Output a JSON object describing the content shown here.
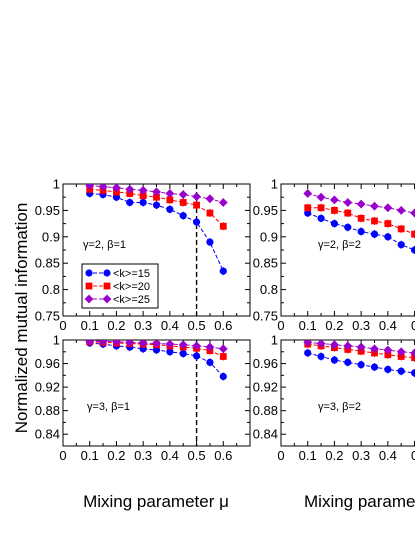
{
  "figure": {
    "ylabel": "Normalized mutual information",
    "xlabel_left": "Mixing parameter  μ",
    "xlabel_right": "Mixing parame"
  },
  "chart_data": [
    {
      "id": "top-left",
      "type": "line",
      "annotation": "γ=2,  β=1",
      "xlim": [
        0,
        0.7
      ],
      "ylim": [
        0.75,
        1
      ],
      "xticks": [
        "0",
        "0.1",
        "0.2",
        "0.3",
        "0.4",
        "0.5",
        "0.6"
      ],
      "yticks": [
        "0.75",
        "0.8",
        "0.85",
        "0.9",
        "0.95",
        "1"
      ],
      "ytick_values": [
        0.75,
        0.8,
        0.85,
        0.9,
        0.95,
        1.0
      ],
      "vline": 0.5,
      "legend": [
        "<k>=15",
        "<k>=20",
        "<k>=25"
      ],
      "series": [
        {
          "name": "<k>=15",
          "color": "#0000ff",
          "marker": "circle",
          "x": [
            0.1,
            0.15,
            0.2,
            0.25,
            0.3,
            0.35,
            0.4,
            0.45,
            0.5,
            0.55,
            0.6
          ],
          "y": [
            0.982,
            0.98,
            0.975,
            0.965,
            0.965,
            0.96,
            0.952,
            0.94,
            0.928,
            0.89,
            0.835
          ]
        },
        {
          "name": "<k>=20",
          "color": "#ff0000",
          "marker": "square",
          "x": [
            0.1,
            0.15,
            0.2,
            0.25,
            0.3,
            0.35,
            0.4,
            0.45,
            0.5,
            0.55,
            0.6
          ],
          "y": [
            0.99,
            0.988,
            0.985,
            0.982,
            0.978,
            0.975,
            0.97,
            0.965,
            0.96,
            0.945,
            0.92
          ]
        },
        {
          "name": "<k>=25",
          "color": "#9900cc",
          "marker": "diamond",
          "x": [
            0.1,
            0.15,
            0.2,
            0.25,
            0.3,
            0.35,
            0.4,
            0.45,
            0.5,
            0.55,
            0.6
          ],
          "y": [
            0.997,
            0.995,
            0.993,
            0.99,
            0.988,
            0.985,
            0.982,
            0.98,
            0.976,
            0.972,
            0.965
          ]
        }
      ]
    },
    {
      "id": "top-right",
      "type": "line",
      "annotation": "γ=2,  β=2",
      "xlim": [
        0,
        0.7
      ],
      "ylim": [
        0.75,
        1
      ],
      "xticks": [
        "0",
        "0.1",
        "0.2",
        "0.3",
        "0.4",
        "0"
      ],
      "yticks": [
        "0.75",
        "0.8",
        "0.85",
        "0.9",
        "0.95",
        "1"
      ],
      "ytick_values": [
        0.75,
        0.8,
        0.85,
        0.9,
        0.95,
        1.0
      ],
      "series": [
        {
          "name": "<k>=15",
          "color": "#0000ff",
          "marker": "circle",
          "x": [
            0.1,
            0.15,
            0.2,
            0.25,
            0.3,
            0.35,
            0.4,
            0.45,
            0.5
          ],
          "y": [
            0.945,
            0.935,
            0.925,
            0.918,
            0.91,
            0.905,
            0.9,
            0.885,
            0.875
          ]
        },
        {
          "name": "<k>=20",
          "color": "#ff0000",
          "marker": "square",
          "x": [
            0.1,
            0.15,
            0.2,
            0.25,
            0.3,
            0.35,
            0.4,
            0.45,
            0.5
          ],
          "y": [
            0.955,
            0.955,
            0.95,
            0.945,
            0.935,
            0.93,
            0.925,
            0.915,
            0.905
          ]
        },
        {
          "name": "<k>=25",
          "color": "#9900cc",
          "marker": "diamond",
          "x": [
            0.1,
            0.15,
            0.2,
            0.25,
            0.3,
            0.35,
            0.4,
            0.45,
            0.5
          ],
          "y": [
            0.982,
            0.975,
            0.97,
            0.965,
            0.962,
            0.958,
            0.955,
            0.95,
            0.945
          ]
        }
      ]
    },
    {
      "id": "bottom-left",
      "type": "line",
      "annotation": "γ=3,  β=1",
      "xlim": [
        0,
        0.7
      ],
      "ylim": [
        0.82,
        1
      ],
      "xticks": [
        "0",
        "0.1",
        "0.2",
        "0.3",
        "0.4",
        "0.5",
        "0.6"
      ],
      "yticks": [
        "0.84",
        "0.88",
        "0.92",
        "0.96",
        "1"
      ],
      "ytick_values": [
        0.84,
        0.88,
        0.92,
        0.96,
        1.0
      ],
      "vline": 0.5,
      "series": [
        {
          "name": "<k>=15",
          "color": "#0000ff",
          "marker": "circle",
          "x": [
            0.1,
            0.15,
            0.2,
            0.25,
            0.3,
            0.35,
            0.4,
            0.45,
            0.5,
            0.55,
            0.6
          ],
          "y": [
            0.995,
            0.993,
            0.99,
            0.988,
            0.985,
            0.983,
            0.98,
            0.977,
            0.973,
            0.962,
            0.938
          ]
        },
        {
          "name": "<k>=20",
          "color": "#ff0000",
          "marker": "square",
          "x": [
            0.1,
            0.15,
            0.2,
            0.25,
            0.3,
            0.35,
            0.4,
            0.45,
            0.5,
            0.55,
            0.6
          ],
          "y": [
            0.997,
            0.996,
            0.995,
            0.994,
            0.993,
            0.992,
            0.99,
            0.988,
            0.986,
            0.982,
            0.972
          ]
        },
        {
          "name": "<k>=25",
          "color": "#9900cc",
          "marker": "diamond",
          "x": [
            0.1,
            0.15,
            0.2,
            0.25,
            0.3,
            0.35,
            0.4,
            0.45,
            0.5,
            0.55,
            0.6
          ],
          "y": [
            0.998,
            0.998,
            0.997,
            0.996,
            0.995,
            0.994,
            0.993,
            0.992,
            0.99,
            0.988,
            0.985
          ]
        }
      ]
    },
    {
      "id": "bottom-right",
      "type": "line",
      "annotation": "γ=3,  β=2",
      "xlim": [
        0,
        0.7
      ],
      "ylim": [
        0.82,
        1
      ],
      "xticks": [
        "0",
        "0.1",
        "0.2",
        "0.3",
        "0.4",
        "0"
      ],
      "yticks": [
        "0.84",
        "0.88",
        "0.92",
        "0.96",
        "1"
      ],
      "ytick_values": [
        0.84,
        0.88,
        0.92,
        0.96,
        1.0
      ],
      "series": [
        {
          "name": "<k>=15",
          "color": "#0000ff",
          "marker": "circle",
          "x": [
            0.1,
            0.15,
            0.2,
            0.25,
            0.3,
            0.35,
            0.4,
            0.45,
            0.5
          ],
          "y": [
            0.978,
            0.972,
            0.966,
            0.962,
            0.958,
            0.954,
            0.95,
            0.947,
            0.944
          ]
        },
        {
          "name": "<k>=20",
          "color": "#ff0000",
          "marker": "square",
          "x": [
            0.1,
            0.15,
            0.2,
            0.25,
            0.3,
            0.35,
            0.4,
            0.45,
            0.5
          ],
          "y": [
            0.993,
            0.99,
            0.987,
            0.984,
            0.981,
            0.978,
            0.975,
            0.972,
            0.97
          ]
        },
        {
          "name": "<k>=25",
          "color": "#9900cc",
          "marker": "diamond",
          "x": [
            0.1,
            0.15,
            0.2,
            0.25,
            0.3,
            0.35,
            0.4,
            0.45,
            0.5
          ],
          "y": [
            0.996,
            0.994,
            0.992,
            0.99,
            0.988,
            0.985,
            0.983,
            0.98,
            0.978
          ]
        }
      ]
    }
  ]
}
